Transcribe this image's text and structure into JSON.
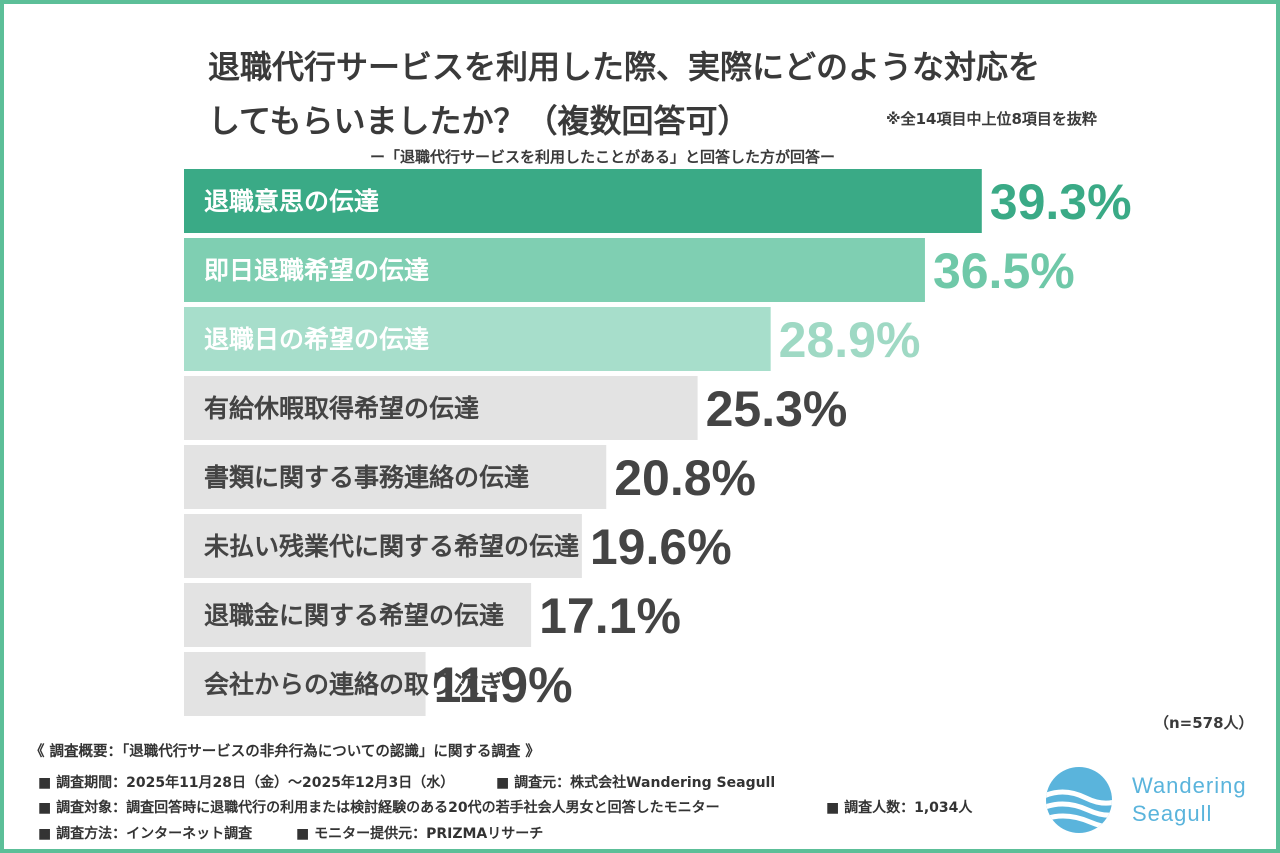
{
  "title": "退職代行サービスを利用した際、実際にどのような対応を\nしてもらいましたか？（複数回答可）",
  "note": "※全14項目中上位8項目を抜粋",
  "subtitle": "ー「退職代行サービスを利用したことがある」と回答した方が回答ー",
  "n_label": "（n=578人）",
  "chart_data": {
    "type": "bar",
    "orientation": "horizontal",
    "categories": [
      "退職意思の伝達",
      "即日退職希望の伝達",
      "退職日の希望の伝達",
      "有給休暇取得希望の伝達",
      "書類に関する事務連絡の伝達",
      "未払い残業代に関する希望の伝達",
      "退職金に関する希望の伝達",
      "会社からの連絡の取り次ぎ"
    ],
    "values": [
      39.3,
      36.5,
      28.9,
      25.3,
      20.8,
      19.6,
      17.1,
      11.9
    ],
    "value_labels": [
      "39.3%",
      "36.5%",
      "28.9%",
      "25.3%",
      "20.8%",
      "19.6%",
      "17.1%",
      "11.9%"
    ],
    "xlim": [
      0,
      40
    ],
    "grid": false,
    "colors": {
      "top1_bar": "#3aaa86",
      "top2_bar": "#7fcfb2",
      "top3_bar": "#a7decb",
      "other_bar": "#e3e3e3",
      "top1_value": "#3aaa86",
      "top2_value": "#6fc8a8",
      "top3_value": "#9fd9c4",
      "other_value": "#444444",
      "highlight_label": "#ffffff",
      "other_label": "#444444"
    }
  },
  "footer": {
    "overview": "《 調査概要：「退職代行サービスの非弁行為についての認識」に関する調査 》",
    "period": "■ 調査期間：2025年11月28日（金）〜2025年12月3日（水）",
    "organizer": "■ 調査元：株式会社Wandering Seagull",
    "target": "■ 調査対象：調査回答時に退職代行の利用または検討経験のある20代の若手社会人男女と回答したモニター",
    "respondents": "■ 調査人数：1,034人",
    "method": "■ 調査方法：インターネット調査",
    "provider": "■ モニター提供元：PRIZMAリサーチ"
  },
  "brand": {
    "line1": "Wandering",
    "line2": "Seagull",
    "color": "#5ab4dc"
  }
}
